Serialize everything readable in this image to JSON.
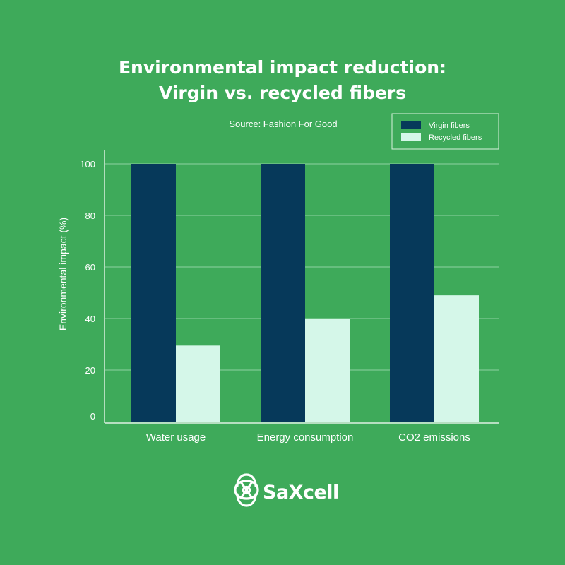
{
  "chart_data": {
    "type": "bar",
    "title": [
      "Environmental impact reduction:",
      "Virgin vs. recycled fibers"
    ],
    "subtitle": "Source: Fashion For Good",
    "categories": [
      "Water usage",
      "Energy consumption",
      "CO2 emissions"
    ],
    "series": [
      {
        "name": "Virgin fibers",
        "color": "#06395a",
        "values": [
          100,
          100,
          100
        ]
      },
      {
        "name": "Recycled fibers",
        "color": "#d5f7e9",
        "values": [
          29.5,
          40,
          49
        ]
      }
    ],
    "xlabel": "",
    "ylabel": "Environmental impact (%)",
    "ylim": [
      0,
      100
    ],
    "yticks": [
      0,
      20,
      40,
      60,
      80,
      100
    ],
    "grid": true,
    "legend": "top-right"
  },
  "brand": {
    "name": "SaXcell",
    "logo_icon": "knot-logo-icon"
  },
  "colors": {
    "background": "#3eaa5a",
    "grid": "#8fd1a2",
    "axis": "#ffffff"
  }
}
